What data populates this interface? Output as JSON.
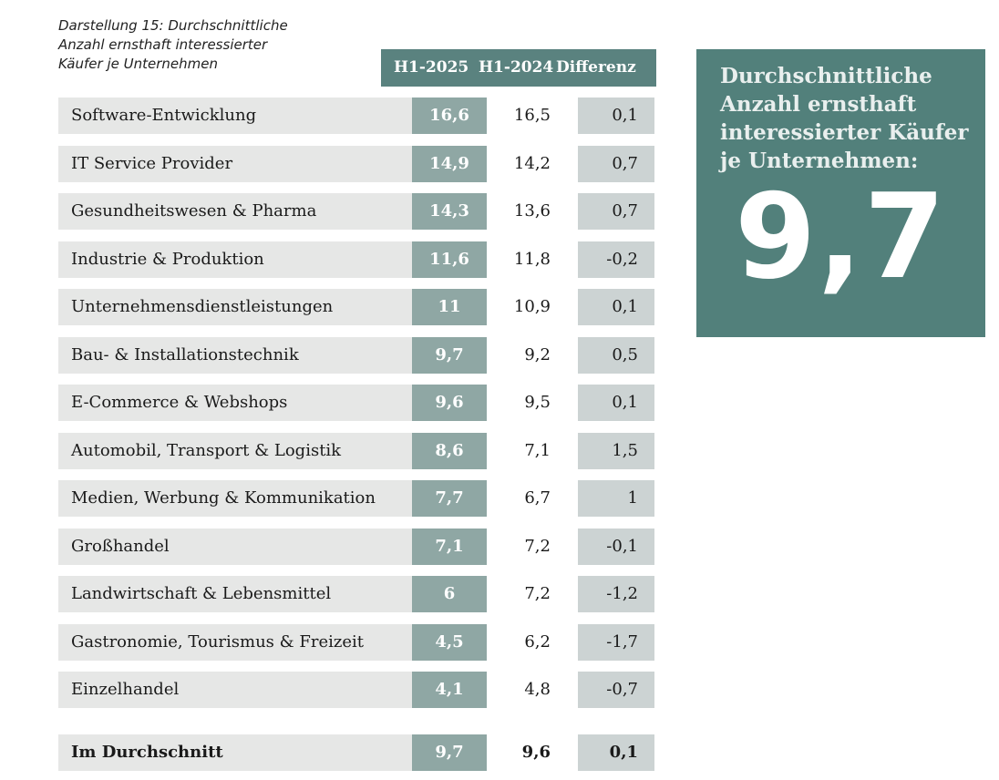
{
  "caption": [
    "Darstellung 15: Durchschnittliche",
    "Anzahl ernsthaft interessierter",
    "Käufer je Unternehmen"
  ],
  "headers": {
    "h2025": "H1-2025",
    "h2024": "H1-2024",
    "diff": "Differenz"
  },
  "rows": [
    {
      "label": "Software-Entwicklung",
      "h2025": "16,6",
      "h2024": "16,5",
      "diff": "0,1"
    },
    {
      "label": "IT Service Provider",
      "h2025": "14,9",
      "h2024": "14,2",
      "diff": "0,7"
    },
    {
      "label": "Gesundheitswesen & Pharma",
      "h2025": "14,3",
      "h2024": "13,6",
      "diff": "0,7"
    },
    {
      "label": "Industrie & Produktion",
      "h2025": "11,6",
      "h2024": "11,8",
      "diff": "-0,2"
    },
    {
      "label": "Unternehmensdienstleistungen",
      "h2025": "11",
      "h2024": "10,9",
      "diff": "0,1"
    },
    {
      "label": "Bau- & Installationstechnik",
      "h2025": "9,7",
      "h2024": "9,2",
      "diff": "0,5"
    },
    {
      "label": "E-Commerce & Webshops",
      "h2025": "9,6",
      "h2024": "9,5",
      "diff": "0,1"
    },
    {
      "label": "Automobil, Transport & Logistik",
      "h2025": "8,6",
      "h2024": "7,1",
      "diff": "1,5"
    },
    {
      "label": "Medien, Werbung & Kommunikation",
      "h2025": "7,7",
      "h2024": "6,7",
      "diff": "1"
    },
    {
      "label": "Großhandel",
      "h2025": "7,1",
      "h2024": "7,2",
      "diff": "-0,1"
    },
    {
      "label": "Landwirtschaft & Lebensmittel",
      "h2025": "6",
      "h2024": "7,2",
      "diff": "-1,2"
    },
    {
      "label": "Gastronomie, Tourismus & Freizeit",
      "h2025": "4,5",
      "h2024": "6,2",
      "diff": "-1,7"
    },
    {
      "label": "Einzelhandel",
      "h2025": "4,1",
      "h2024": "4,8",
      "diff": "-0,7"
    }
  ],
  "total": {
    "label": "Im Durchschnitt",
    "h2025": "9,7",
    "h2024": "9,6",
    "diff": "0,1"
  },
  "infobox": {
    "text": [
      "Durchschnittliche",
      "Anzahl ernsthaft",
      "interessierter Käufer",
      "je Unternehmen:"
    ],
    "value": "9,7"
  },
  "chart_data": {
    "type": "table",
    "columns": [
      "H1-2025",
      "H1-2024",
      "Differenz"
    ],
    "categories": [
      "Software-Entwicklung",
      "IT Service Provider",
      "Gesundheitswesen & Pharma",
      "Industrie & Produktion",
      "Unternehmensdienstleistungen",
      "Bau- & Installationstechnik",
      "E-Commerce & Webshops",
      "Automobil, Transport & Logistik",
      "Medien, Werbung & Kommunikation",
      "Großhandel",
      "Landwirtschaft & Lebensmittel",
      "Gastronomie, Tourismus & Freizeit",
      "Einzelhandel",
      "Im Durchschnitt"
    ],
    "series": [
      {
        "name": "H1-2025",
        "values": [
          16.6,
          14.9,
          14.3,
          11.6,
          11,
          9.7,
          9.6,
          8.6,
          7.7,
          7.1,
          6,
          4.5,
          4.1,
          9.7
        ]
      },
      {
        "name": "H1-2024",
        "values": [
          16.5,
          14.2,
          13.6,
          11.8,
          10.9,
          9.2,
          9.5,
          7.1,
          6.7,
          7.2,
          7.2,
          6.2,
          4.8,
          9.6
        ]
      },
      {
        "name": "Differenz",
        "values": [
          0.1,
          0.7,
          0.7,
          -0.2,
          0.1,
          0.5,
          0.1,
          1.5,
          1,
          -0.1,
          -1.2,
          -1.7,
          -0.7,
          0.1
        ]
      }
    ]
  },
  "colors": {
    "header_bg": "#5a827f",
    "h2025_bg": "#8fa7a4",
    "label_bg": "#e6e7e6",
    "diff_bg": "#ccd3d3",
    "infobox_bg": "#52807b"
  }
}
